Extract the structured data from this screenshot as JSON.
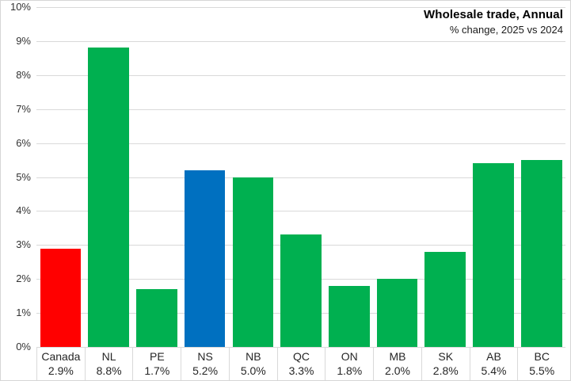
{
  "chart_data": {
    "type": "bar",
    "title": "Wholesale trade, Annual",
    "subtitle": "% change, 2025 vs 2024",
    "categories": [
      "Canada",
      "NL",
      "PE",
      "NS",
      "NB",
      "QC",
      "ON",
      "MB",
      "SK",
      "AB",
      "BC"
    ],
    "values": [
      2.9,
      8.8,
      1.7,
      5.2,
      5.0,
      3.3,
      1.8,
      2.0,
      2.8,
      5.4,
      5.5
    ],
    "value_labels": [
      "2.9%",
      "8.8%",
      "1.7%",
      "5.2%",
      "5.0%",
      "3.3%",
      "1.8%",
      "2.0%",
      "2.8%",
      "5.4%",
      "5.5%"
    ],
    "bar_colors": [
      "#ff0000",
      "#00b050",
      "#00b050",
      "#0070c0",
      "#00b050",
      "#00b050",
      "#00b050",
      "#00b050",
      "#00b050",
      "#00b050",
      "#00b050"
    ],
    "xlabel": "",
    "ylabel": "",
    "ylim": [
      0,
      10
    ],
    "ytick_step": 1,
    "ytick_labels": [
      "0%",
      "1%",
      "2%",
      "3%",
      "4%",
      "5%",
      "6%",
      "7%",
      "8%",
      "9%",
      "10%"
    ],
    "grid": true,
    "legend_position": "none"
  },
  "colors": {
    "canada_highlight": "#ff0000",
    "province_default": "#00b050",
    "ns_highlight": "#0070c0",
    "gridline": "#d9d9d9",
    "border": "#d6d6d6",
    "axis_text": "#333333",
    "label_text": "#262626"
  }
}
